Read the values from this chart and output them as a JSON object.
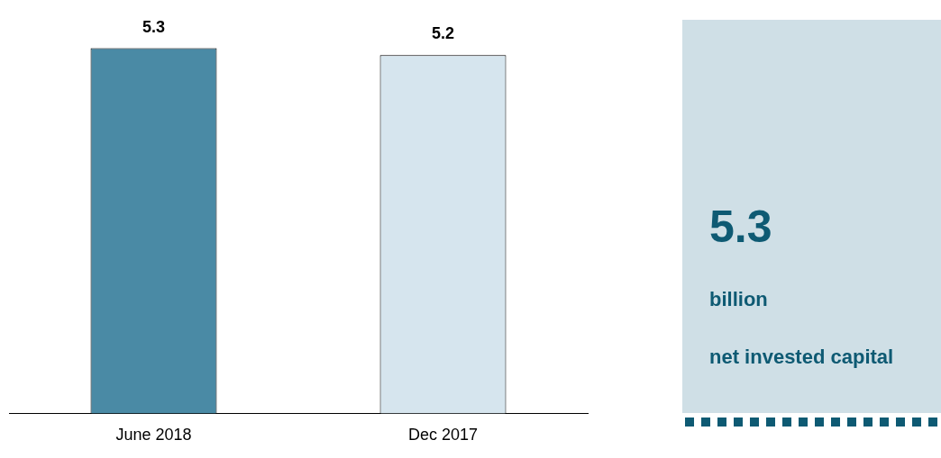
{
  "chart_data": [
    {
      "type": "bar",
      "categories": [
        "June 2018",
        "Dec 2017"
      ],
      "values": [
        5.3,
        5.2
      ],
      "colors": [
        "#4a8aa5",
        "#d6e5ee"
      ],
      "data_labels": true,
      "grid": false,
      "legend": false
    },
    {
      "type": "other",
      "annotations": [
        "5.3",
        "billion",
        "net invested capital"
      ]
    }
  ]
}
